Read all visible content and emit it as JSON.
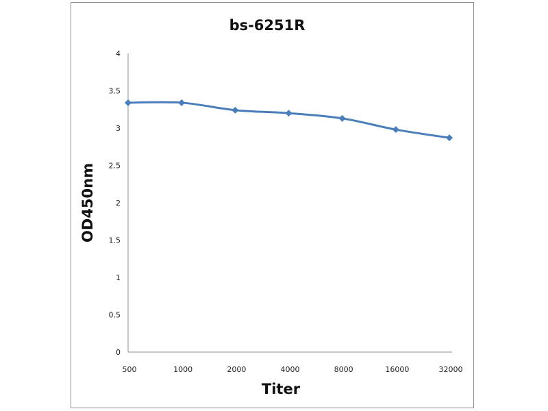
{
  "chart_data": {
    "type": "line",
    "title": "bs-6251R",
    "xlabel": "Titer",
    "ylabel": "OD450nm",
    "categories": [
      "500",
      "1000",
      "2000",
      "4000",
      "8000",
      "16000",
      "32000"
    ],
    "series": [
      {
        "name": "bs-6251R",
        "values": [
          3.34,
          3.34,
          3.24,
          3.2,
          3.13,
          2.98,
          2.87
        ],
        "color": "#4a7ebb",
        "marker": "diamond"
      }
    ],
    "ylim": [
      0,
      4
    ],
    "yticks": [
      "0",
      "0.5",
      "1",
      "1.5",
      "2",
      "2.5",
      "3",
      "3.5",
      "4"
    ],
    "grid": false,
    "legend": "none"
  }
}
